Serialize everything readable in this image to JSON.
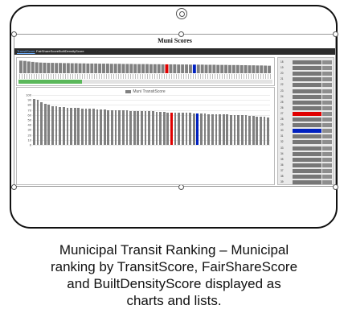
{
  "app": {
    "title": "Muni Scores"
  },
  "tabs": [
    {
      "label": "TransitScore",
      "active": true
    },
    {
      "label": "FairShareScore",
      "active": false
    },
    {
      "label": "BuiltDensityScore",
      "active": false
    }
  ],
  "progress": {
    "fraction": 0.25
  },
  "colors": {
    "default_bar": "#808080",
    "highlight_red": "#e00000",
    "highlight_blue": "#0020c0",
    "progress": "#5bb85b"
  },
  "chart_data": {
    "type": "bar",
    "legend": "Muni TransitScore",
    "ylim": [
      0,
      100
    ],
    "yticks": [
      "0",
      "10",
      "20",
      "30",
      "40",
      "50",
      "60",
      "70",
      "80",
      "90",
      "100"
    ],
    "values": [
      92,
      90,
      86,
      83,
      80,
      78,
      77,
      76,
      76,
      75,
      75,
      74,
      74,
      73,
      73,
      72,
      72,
      71,
      71,
      71,
      70,
      70,
      70,
      69,
      69,
      69,
      68,
      68,
      68,
      67,
      67,
      67,
      67,
      66,
      66,
      66,
      65,
      65,
      65,
      65,
      64,
      64,
      64,
      63,
      63,
      63,
      63,
      62,
      62,
      62,
      61,
      61,
      61,
      60,
      60,
      60,
      59,
      59,
      58,
      58,
      57,
      57,
      56,
      55
    ],
    "highlight": [
      {
        "index": 37,
        "color": "red"
      },
      {
        "index": 44,
        "color": "blue"
      }
    ],
    "xlabels": [
      "",
      "",
      "",
      "",
      "",
      "",
      "",
      "",
      "",
      "",
      "",
      "",
      "",
      "",
      "",
      "",
      "",
      "",
      "",
      "",
      "",
      "",
      "",
      "",
      "",
      "",
      "",
      "",
      "",
      "",
      "",
      "",
      "",
      "",
      "",
      "",
      "",
      "",
      "",
      "",
      "",
      "",
      "",
      "",
      "",
      "",
      "",
      "",
      "",
      "",
      "",
      "",
      "",
      "",
      "",
      "",
      "",
      "",
      "",
      "",
      "",
      "",
      "",
      ""
    ]
  },
  "sidebar_list": {
    "rows": [
      {
        "rank": "18",
        "name": "",
        "color": "gray"
      },
      {
        "rank": "19",
        "name": "",
        "color": "gray"
      },
      {
        "rank": "20",
        "name": "",
        "color": "gray"
      },
      {
        "rank": "21",
        "name": "",
        "color": "gray"
      },
      {
        "rank": "22",
        "name": "",
        "color": "gray"
      },
      {
        "rank": "23",
        "name": "",
        "color": "gray"
      },
      {
        "rank": "24",
        "name": "",
        "color": "gray"
      },
      {
        "rank": "25",
        "name": "",
        "color": "gray"
      },
      {
        "rank": "26",
        "name": "",
        "color": "gray"
      },
      {
        "rank": "27",
        "name": "",
        "color": "red"
      },
      {
        "rank": "28",
        "name": "",
        "color": "gray"
      },
      {
        "rank": "29",
        "name": "",
        "color": "gray"
      },
      {
        "rank": "30",
        "name": "",
        "color": "blue"
      },
      {
        "rank": "31",
        "name": "",
        "color": "gray"
      },
      {
        "rank": "32",
        "name": "",
        "color": "gray"
      },
      {
        "rank": "33",
        "name": "",
        "color": "gray"
      },
      {
        "rank": "34",
        "name": "",
        "color": "gray"
      },
      {
        "rank": "35",
        "name": "",
        "color": "gray"
      },
      {
        "rank": "36",
        "name": "",
        "color": "gray"
      },
      {
        "rank": "37",
        "name": "",
        "color": "gray"
      },
      {
        "rank": "38",
        "name": "",
        "color": "gray"
      },
      {
        "rank": "39",
        "name": "",
        "color": "gray"
      }
    ]
  },
  "caption": {
    "line1": "Municipal Transit Ranking – Municipal",
    "line2": "ranking by TransitScore, FairShareScore",
    "line3": "and BuiltDensityScore displayed as",
    "line4": "charts and lists."
  }
}
